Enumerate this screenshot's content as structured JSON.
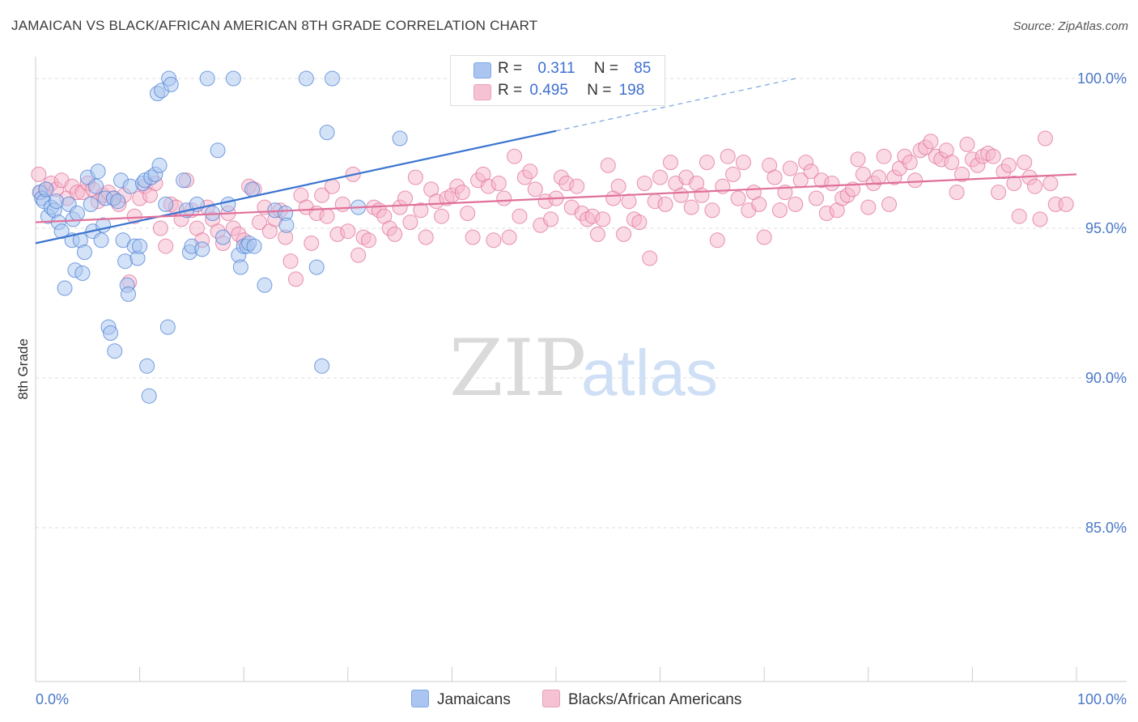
{
  "header": {
    "title": "JAMAICAN VS BLACK/AFRICAN AMERICAN 8TH GRADE CORRELATION CHART",
    "source": "Source: ZipAtlas.com"
  },
  "watermark": {
    "zip": "ZIP",
    "atlas": "atlas"
  },
  "legend_top": {
    "rows": [
      {
        "r_label": "R =",
        "r_value": "0.311",
        "n_label": "N =",
        "n_value": "85",
        "color": "#aac6f0"
      },
      {
        "r_label": "R =",
        "r_value": "0.495",
        "n_label": "N =",
        "n_value": "198",
        "color": "#f5b6ca"
      }
    ]
  },
  "legend_bottom": [
    {
      "label": "Jamaicans",
      "color": "#aac6f0"
    },
    {
      "label": "Blacks/African Americans",
      "color": "#f5b6ca"
    }
  ],
  "chart_data": {
    "type": "scatter",
    "title": "JAMAICAN VS BLACK/AFRICAN AMERICAN 8TH GRADE CORRELATION CHART",
    "ylabel": "8th Grade",
    "xlabel": "",
    "xlim": [
      0,
      100
    ],
    "ylim": [
      80.0,
      100.5
    ],
    "x_tick_labels": [
      "0.0%",
      "100.0%"
    ],
    "y_ticks": [
      85,
      90,
      95,
      100
    ],
    "y_tick_labels": [
      "85.0%",
      "90.0%",
      "95.0%",
      "100.0%"
    ],
    "grid": "horizontal dashed",
    "series": [
      {
        "name": "Jamaicans",
        "color": "#4a7fd4",
        "fill": "#aac6f0",
        "trend": {
          "x0": 0,
          "y0": 94.5,
          "x1": 50,
          "y1": 98.25,
          "dashed_to_x": 73,
          "dashed_to_y": 100.0
        },
        "points": [
          [
            0.4,
            96.2
          ],
          [
            0.6,
            96.0
          ],
          [
            0.8,
            95.9
          ],
          [
            1.0,
            96.3
          ],
          [
            1.2,
            95.4
          ],
          [
            1.5,
            95.7
          ],
          [
            1.8,
            95.6
          ],
          [
            2.0,
            95.9
          ],
          [
            2.2,
            95.2
          ],
          [
            2.5,
            94.9
          ],
          [
            2.8,
            93.0
          ],
          [
            3.2,
            95.8
          ],
          [
            3.5,
            94.6
          ],
          [
            3.6,
            95.3
          ],
          [
            3.8,
            93.6
          ],
          [
            4.0,
            95.5
          ],
          [
            4.3,
            94.6
          ],
          [
            4.5,
            93.5
          ],
          [
            4.7,
            94.2
          ],
          [
            5.0,
            96.7
          ],
          [
            5.3,
            95.8
          ],
          [
            5.5,
            94.9
          ],
          [
            5.8,
            96.4
          ],
          [
            6.0,
            96.9
          ],
          [
            6.3,
            94.6
          ],
          [
            6.5,
            95.1
          ],
          [
            6.7,
            96.0
          ],
          [
            7.0,
            91.7
          ],
          [
            7.2,
            91.5
          ],
          [
            7.5,
            96.0
          ],
          [
            7.6,
            90.9
          ],
          [
            7.9,
            95.9
          ],
          [
            8.2,
            96.6
          ],
          [
            8.4,
            94.6
          ],
          [
            8.6,
            93.9
          ],
          [
            8.8,
            93.1
          ],
          [
            8.9,
            92.8
          ],
          [
            9.1,
            96.4
          ],
          [
            9.5,
            94.4
          ],
          [
            9.8,
            94.0
          ],
          [
            10.0,
            94.4
          ],
          [
            10.3,
            96.5
          ],
          [
            10.5,
            96.6
          ],
          [
            10.7,
            90.4
          ],
          [
            10.9,
            89.4
          ],
          [
            11.1,
            96.7
          ],
          [
            11.5,
            96.8
          ],
          [
            11.7,
            99.5
          ],
          [
            11.9,
            97.1
          ],
          [
            12.1,
            99.6
          ],
          [
            12.5,
            95.8
          ],
          [
            12.7,
            91.7
          ],
          [
            12.8,
            100.0
          ],
          [
            13.0,
            99.8
          ],
          [
            14.2,
            96.6
          ],
          [
            14.5,
            95.6
          ],
          [
            14.8,
            94.2
          ],
          [
            15.0,
            94.4
          ],
          [
            15.5,
            95.8
          ],
          [
            16.0,
            94.3
          ],
          [
            16.5,
            100.0
          ],
          [
            17.0,
            95.5
          ],
          [
            17.5,
            97.6
          ],
          [
            18.0,
            94.7
          ],
          [
            19.0,
            100.0
          ],
          [
            19.5,
            94.1
          ],
          [
            19.7,
            93.7
          ],
          [
            20.0,
            94.4
          ],
          [
            20.3,
            94.4
          ],
          [
            20.5,
            94.5
          ],
          [
            20.8,
            96.3
          ],
          [
            21.0,
            94.4
          ],
          [
            22.0,
            93.1
          ],
          [
            23.0,
            95.6
          ],
          [
            24.0,
            95.5
          ],
          [
            24.1,
            95.1
          ],
          [
            26.0,
            100.0
          ],
          [
            27.0,
            93.7
          ],
          [
            27.5,
            90.4
          ],
          [
            28.0,
            98.2
          ],
          [
            28.5,
            100.0
          ],
          [
            31.0,
            95.7
          ],
          [
            35.0,
            98.0
          ],
          [
            42.5,
            100.0
          ],
          [
            18.5,
            95.8
          ]
        ]
      },
      {
        "name": "Blacks/African Americans",
        "color": "#e0709a",
        "fill": "#f5b6ca",
        "trend": {
          "x0": 0,
          "y0": 95.2,
          "x1": 100,
          "y1": 96.8
        },
        "points": [
          [
            0.3,
            96.8
          ],
          [
            0.5,
            96.2
          ],
          [
            1.0,
            96.3
          ],
          [
            1.5,
            96.5
          ],
          [
            2.0,
            96.3
          ],
          [
            2.5,
            96.6
          ],
          [
            3.0,
            96.0
          ],
          [
            3.5,
            96.4
          ],
          [
            4.0,
            96.2
          ],
          [
            4.5,
            96.2
          ],
          [
            5.0,
            96.5
          ],
          [
            5.5,
            96.3
          ],
          [
            6.0,
            95.9
          ],
          [
            6.5,
            96.1
          ],
          [
            7.0,
            96.2
          ],
          [
            7.5,
            96.0
          ],
          [
            8.0,
            95.8
          ],
          [
            8.5,
            96.1
          ],
          [
            9.0,
            93.2
          ],
          [
            9.5,
            95.4
          ],
          [
            10.0,
            96.0
          ],
          [
            10.5,
            96.4
          ],
          [
            11.0,
            96.1
          ],
          [
            11.5,
            96.5
          ],
          [
            12.0,
            95.0
          ],
          [
            12.5,
            94.4
          ],
          [
            13.0,
            95.8
          ],
          [
            13.5,
            95.7
          ],
          [
            14.0,
            95.3
          ],
          [
            14.5,
            96.6
          ],
          [
            15.0,
            95.6
          ],
          [
            15.5,
            95.0
          ],
          [
            16.0,
            94.6
          ],
          [
            16.5,
            95.7
          ],
          [
            17.0,
            95.3
          ],
          [
            17.5,
            94.9
          ],
          [
            18.0,
            94.5
          ],
          [
            18.5,
            95.5
          ],
          [
            19.0,
            95.0
          ],
          [
            19.5,
            94.8
          ],
          [
            20.0,
            94.6
          ],
          [
            20.5,
            96.4
          ],
          [
            21.0,
            96.3
          ],
          [
            21.5,
            95.2
          ],
          [
            22.0,
            95.7
          ],
          [
            22.5,
            94.9
          ],
          [
            23.0,
            95.3
          ],
          [
            23.5,
            95.6
          ],
          [
            24.0,
            94.7
          ],
          [
            24.5,
            93.9
          ],
          [
            25.0,
            93.3
          ],
          [
            25.5,
            96.1
          ],
          [
            26.0,
            95.7
          ],
          [
            26.5,
            94.5
          ],
          [
            27.0,
            95.5
          ],
          [
            27.5,
            96.1
          ],
          [
            28.0,
            95.4
          ],
          [
            28.5,
            96.4
          ],
          [
            29.0,
            94.8
          ],
          [
            29.5,
            95.8
          ],
          [
            30.0,
            94.9
          ],
          [
            30.5,
            96.8
          ],
          [
            31.0,
            94.1
          ],
          [
            31.5,
            94.7
          ],
          [
            32.0,
            94.6
          ],
          [
            32.5,
            95.7
          ],
          [
            33.0,
            95.6
          ],
          [
            33.5,
            95.4
          ],
          [
            34.0,
            95.0
          ],
          [
            34.5,
            94.8
          ],
          [
            35.0,
            95.7
          ],
          [
            35.5,
            96.0
          ],
          [
            36.0,
            95.2
          ],
          [
            36.5,
            96.7
          ],
          [
            37.0,
            95.6
          ],
          [
            37.5,
            94.7
          ],
          [
            38.0,
            96.3
          ],
          [
            38.5,
            95.9
          ],
          [
            39.0,
            95.4
          ],
          [
            39.5,
            96.0
          ],
          [
            40.0,
            96.1
          ],
          [
            40.5,
            96.4
          ],
          [
            41.0,
            96.2
          ],
          [
            41.5,
            95.5
          ],
          [
            42.0,
            94.7
          ],
          [
            42.5,
            96.6
          ],
          [
            43.0,
            96.8
          ],
          [
            43.5,
            96.4
          ],
          [
            44.0,
            94.6
          ],
          [
            44.5,
            96.5
          ],
          [
            45.0,
            96.0
          ],
          [
            45.5,
            94.7
          ],
          [
            46.0,
            97.4
          ],
          [
            46.5,
            95.4
          ],
          [
            47.0,
            96.7
          ],
          [
            47.5,
            96.9
          ],
          [
            48.0,
            96.3
          ],
          [
            48.5,
            95.1
          ],
          [
            49.0,
            95.9
          ],
          [
            49.5,
            95.3
          ],
          [
            50.0,
            96.0
          ],
          [
            50.5,
            96.7
          ],
          [
            51.0,
            96.5
          ],
          [
            51.5,
            95.7
          ],
          [
            52.0,
            96.4
          ],
          [
            52.5,
            95.5
          ],
          [
            53.0,
            95.3
          ],
          [
            53.5,
            95.4
          ],
          [
            54.0,
            94.8
          ],
          [
            54.5,
            95.3
          ],
          [
            55.0,
            97.1
          ],
          [
            55.5,
            96.0
          ],
          [
            56.0,
            96.4
          ],
          [
            56.5,
            94.8
          ],
          [
            57.0,
            95.9
          ],
          [
            57.5,
            95.3
          ],
          [
            58.0,
            95.2
          ],
          [
            58.5,
            96.5
          ],
          [
            59.0,
            94.0
          ],
          [
            59.5,
            95.9
          ],
          [
            60.0,
            96.7
          ],
          [
            60.5,
            95.8
          ],
          [
            61.0,
            97.2
          ],
          [
            61.5,
            96.5
          ],
          [
            62.0,
            96.1
          ],
          [
            62.5,
            96.7
          ],
          [
            63.0,
            95.7
          ],
          [
            63.5,
            96.5
          ],
          [
            64.0,
            96.1
          ],
          [
            64.5,
            97.2
          ],
          [
            65.0,
            95.6
          ],
          [
            65.5,
            94.6
          ],
          [
            66.0,
            96.4
          ],
          [
            66.5,
            97.4
          ],
          [
            67.0,
            96.8
          ],
          [
            67.5,
            96.0
          ],
          [
            68.0,
            97.2
          ],
          [
            68.5,
            95.6
          ],
          [
            69.0,
            96.2
          ],
          [
            69.5,
            95.8
          ],
          [
            70.0,
            94.7
          ],
          [
            70.5,
            97.1
          ],
          [
            71.0,
            96.7
          ],
          [
            71.5,
            95.6
          ],
          [
            72.0,
            96.2
          ],
          [
            72.5,
            97.0
          ],
          [
            73.0,
            95.8
          ],
          [
            73.5,
            96.6
          ],
          [
            74.0,
            97.2
          ],
          [
            74.5,
            96.9
          ],
          [
            75.0,
            96.0
          ],
          [
            75.5,
            96.6
          ],
          [
            76.0,
            95.5
          ],
          [
            76.5,
            96.5
          ],
          [
            77.0,
            95.6
          ],
          [
            77.5,
            96.0
          ],
          [
            78.0,
            96.1
          ],
          [
            78.5,
            96.3
          ],
          [
            79.0,
            97.3
          ],
          [
            79.5,
            96.8
          ],
          [
            80.0,
            95.7
          ],
          [
            80.5,
            96.5
          ],
          [
            81.0,
            96.7
          ],
          [
            81.5,
            97.4
          ],
          [
            82.0,
            95.8
          ],
          [
            82.5,
            96.7
          ],
          [
            83.0,
            97.0
          ],
          [
            83.5,
            97.4
          ],
          [
            84.0,
            97.2
          ],
          [
            84.5,
            96.6
          ],
          [
            85.0,
            97.6
          ],
          [
            85.5,
            97.7
          ],
          [
            86.0,
            97.9
          ],
          [
            86.5,
            97.4
          ],
          [
            87.0,
            97.3
          ],
          [
            87.5,
            97.6
          ],
          [
            88.0,
            97.2
          ],
          [
            88.5,
            96.2
          ],
          [
            89.0,
            96.8
          ],
          [
            89.5,
            97.8
          ],
          [
            90.0,
            97.3
          ],
          [
            90.5,
            97.1
          ],
          [
            91.0,
            97.4
          ],
          [
            91.5,
            97.5
          ],
          [
            92.0,
            97.4
          ],
          [
            92.5,
            96.2
          ],
          [
            93.0,
            96.9
          ],
          [
            93.5,
            97.1
          ],
          [
            94.0,
            96.5
          ],
          [
            94.5,
            95.4
          ],
          [
            95.0,
            97.2
          ],
          [
            95.5,
            96.7
          ],
          [
            96.0,
            96.4
          ],
          [
            96.5,
            95.3
          ],
          [
            97.0,
            98.0
          ],
          [
            97.5,
            96.5
          ],
          [
            98.0,
            95.8
          ],
          [
            99.0,
            95.8
          ]
        ]
      }
    ]
  }
}
